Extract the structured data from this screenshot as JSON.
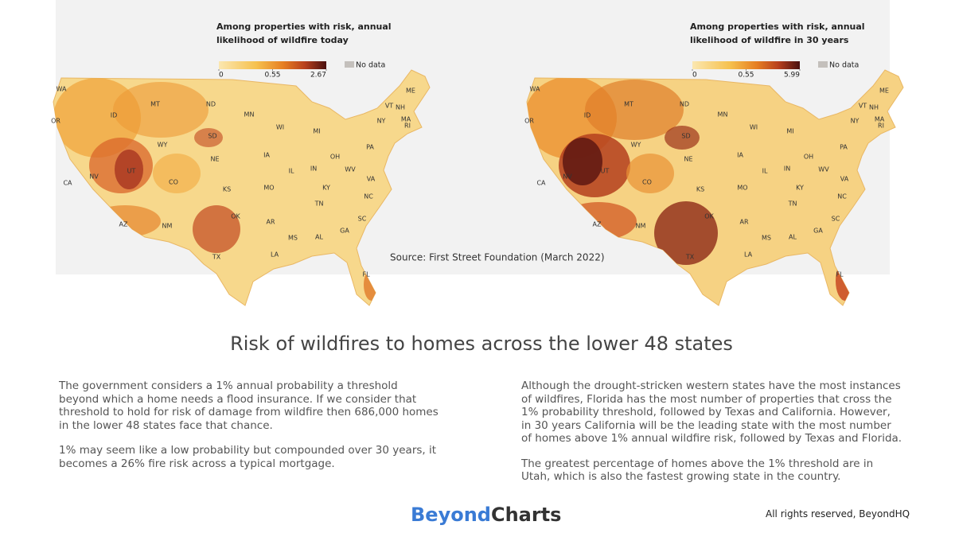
{
  "maps": [
    {
      "title_lines": [
        "Among properties with risk, annual",
        "likelihood of wildfire today"
      ],
      "legend_ticks": [
        0,
        0.55,
        2.67
      ],
      "no_data": "No data",
      "state_labels": [
        "WA",
        "OR",
        "CA",
        "NV",
        "ID",
        "MT",
        "WY",
        "UT",
        "AZ",
        "CO",
        "NM",
        "ND",
        "SD",
        "NE",
        "KS",
        "OK",
        "TX",
        "MN",
        "IA",
        "MO",
        "AR",
        "LA",
        "WI",
        "IL",
        "MS",
        "MI",
        "IN",
        "KY",
        "TN",
        "AL",
        "OH",
        "GA",
        "FL",
        "SC",
        "NC",
        "VA",
        "WV",
        "PA",
        "NY",
        "ME",
        "VT",
        "NH",
        "MA",
        "RI"
      ]
    },
    {
      "title_lines": [
        "Among properties with risk, annual",
        "likelihood of wildfire in 30 years"
      ],
      "legend_ticks": [
        0,
        0.55,
        5.99
      ],
      "no_data": "No data",
      "state_labels": [
        "WA",
        "OR",
        "CA",
        "NV",
        "ID",
        "MT",
        "WY",
        "UT",
        "AZ",
        "CO",
        "NM",
        "ND",
        "SD",
        "NE",
        "KS",
        "OK",
        "TX",
        "MN",
        "IA",
        "MO",
        "AR",
        "LA",
        "WI",
        "IL",
        "MS",
        "MI",
        "IN",
        "KY",
        "TN",
        "AL",
        "OH",
        "GA",
        "FL",
        "SC",
        "NC",
        "VA",
        "WV",
        "PA",
        "NY",
        "ME",
        "VT",
        "NH",
        "MA",
        "RI"
      ]
    }
  ],
  "source": "Source: First Street Foundation (March 2022)",
  "headline": "Risk of wildfires to homes across the lower 48 states",
  "left_paragraphs": [
    "The government considers a 1% annual probability a threshold beyond which a home needs a flood insurance. If we consider that threshold to hold for risk of damage from wildfire then 686,000 homes in the lower 48 states face that chance.",
    "1% may seem like a low probability but compounded over 30 years, it becomes a 26% fire risk across a typical mortgage."
  ],
  "right_paragraphs": [
    "Although the drought-stricken western states have the most instances of wildfires, Florida has the most number of properties that cross the 1% probability threshold, followed by Texas and California. However, in 30 years California will be the leading state with the most number of homes above 1% annual wildfire risk, followed by Texas and Florida.",
    "The greatest percentage of homes above the 1% threshold are in Utah, which is also the fastest growing state in the country."
  ],
  "brand": {
    "first": "Beyond",
    "second": "Charts"
  },
  "rights": "All rights reserved, BeyondHQ"
}
